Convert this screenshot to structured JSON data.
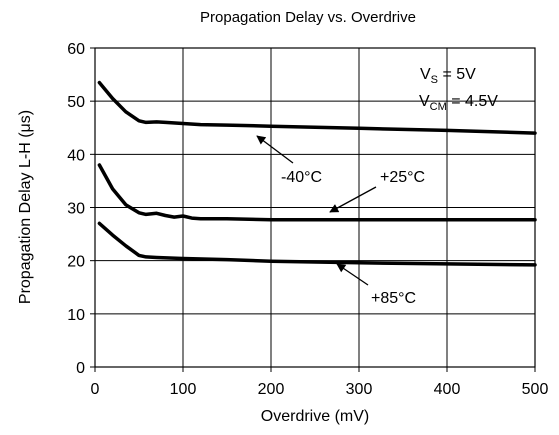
{
  "chart_data": {
    "type": "line",
    "title": "Propagation Delay vs. Overdrive",
    "xlabel": "Overdrive (mV)",
    "ylabel": "Propagation Delay L-H (μs)",
    "xlim": [
      0,
      500
    ],
    "ylim": [
      0,
      60
    ],
    "xticks": [
      0,
      100,
      200,
      300,
      400,
      500
    ],
    "yticks": [
      0,
      10,
      20,
      30,
      40,
      50,
      60
    ],
    "xtick_labels": [
      "0",
      "100",
      "200",
      "300",
      "400",
      "500"
    ],
    "ytick_labels": [
      "0",
      "10",
      "20",
      "30",
      "40",
      "50",
      "60"
    ],
    "grid": true,
    "series": [
      {
        "name": "-40°C",
        "x": [
          5,
          20,
          35,
          50,
          58,
          70,
          80,
          100,
          120,
          150,
          200,
          250,
          300,
          400,
          500
        ],
        "y": [
          53.5,
          50.5,
          48.0,
          46.3,
          46.0,
          46.1,
          46.0,
          45.8,
          45.6,
          45.5,
          45.3,
          45.1,
          44.9,
          44.5,
          44.0
        ]
      },
      {
        "name": "+25°C",
        "x": [
          5,
          20,
          35,
          50,
          58,
          70,
          80,
          90,
          100,
          110,
          120,
          150,
          200,
          300,
          400,
          500
        ],
        "y": [
          38.0,
          33.5,
          30.5,
          29.0,
          28.7,
          28.9,
          28.5,
          28.2,
          28.4,
          28.0,
          27.9,
          27.9,
          27.7,
          27.7,
          27.7,
          27.7
        ]
      },
      {
        "name": "+85°C",
        "x": [
          5,
          20,
          35,
          50,
          58,
          70,
          100,
          150,
          200,
          300,
          400,
          500
        ],
        "y": [
          27.0,
          24.8,
          22.8,
          21.0,
          20.7,
          20.6,
          20.4,
          20.2,
          19.9,
          19.6,
          19.4,
          19.2
        ]
      }
    ],
    "annotations": {
      "vs_main": "V",
      "vs_sub": "S",
      "vs_rest": " = 5V",
      "vcm_main": "V",
      "vcm_sub": "CM",
      "vcm_rest": " = 4.5V",
      "label_m40": "-40°C",
      "label_25": "+25°C",
      "label_85": "+85°C"
    }
  }
}
